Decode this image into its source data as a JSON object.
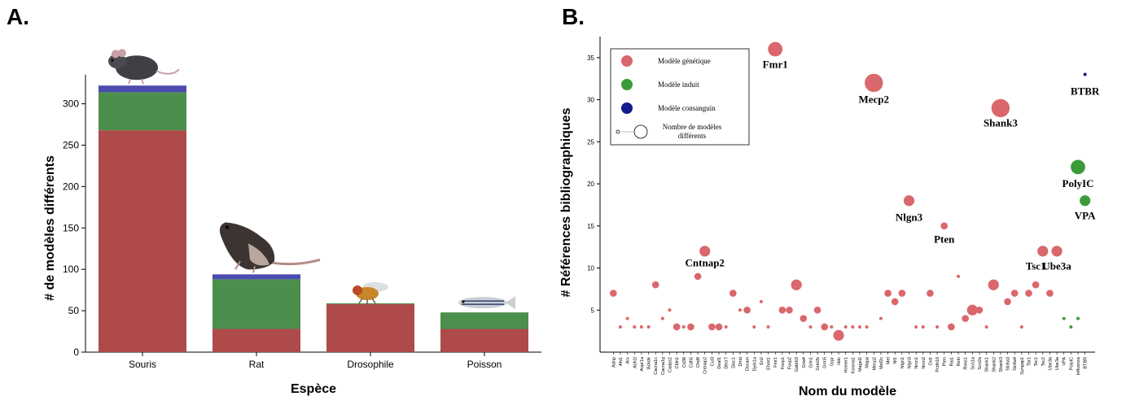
{
  "panel_a": {
    "letter": "A."
  },
  "panel_b": {
    "letter": "B."
  },
  "chart_data": [
    {
      "type": "bar",
      "stacked": true,
      "xlabel": "Espèce",
      "ylabel": "# de modèles différents",
      "ylim": [
        0,
        335
      ],
      "yticks": [
        0,
        50,
        100,
        150,
        200,
        250,
        300
      ],
      "categories": [
        "Souris",
        "Rat",
        "Drosophile",
        "Poisson"
      ],
      "colors": [
        "#ae4a4a",
        "#4c8f4c",
        "#4b4bb0"
      ],
      "series": [
        {
          "values": [
            268,
            28,
            58,
            28
          ]
        },
        {
          "values": [
            46,
            60,
            1,
            20
          ]
        },
        {
          "values": [
            8,
            6,
            0,
            0
          ]
        }
      ],
      "icons": [
        "mouse-illustration",
        "rat-illustration",
        "fly-illustration",
        "fish-illustration"
      ]
    },
    {
      "type": "scatter",
      "xlabel": "Nom du modèle",
      "ylabel": "# Références bibliographiques",
      "ylim": [
        0,
        37.5
      ],
      "yticks": [
        5,
        10,
        15,
        20,
        25,
        30,
        35
      ],
      "grid": false,
      "legend_position": "top-left",
      "categories": [
        "Adnp",
        "Ahi1",
        "Arx",
        "Ash1l",
        "Avpr1a",
        "Bckdk",
        "Cacna1c",
        "Cacna1g",
        "Cadps2",
        "Cbln1",
        "Cd38",
        "Cdh5",
        "Chd8",
        "Cntnap2",
        "Cul3",
        "Deaf1",
        "Dhcr7",
        "Disc1",
        "Dmd",
        "Dscam",
        "Dyrk1a",
        "En2",
        "Ehmt1",
        "Fmr1",
        "Foxp1",
        "Foxp2",
        "Gabrb3",
        "Gria4",
        "Grin1",
        "Grin2b",
        "Grm5",
        "Grpr",
        "Hdc",
        "Homer1",
        "Kcnma1",
        "Magel2",
        "Mapa",
        "Mecp2",
        "Mef2c",
        "Met",
        "Nf1",
        "Nlgn1",
        "Nlgn3",
        "Nrxn1",
        "Nrxn2",
        "Oxtr",
        "Pcdh10",
        "Pten",
        "Rai1",
        "Reln",
        "Rims1",
        "Scn1a",
        "Scn2a",
        "Shank1",
        "Shank2",
        "Shank3",
        "Slc6a3",
        "Slc6a4",
        "Syngap1",
        "Tbr1",
        "Tsc1",
        "Tsc2",
        "Ube3a",
        "Ube3a",
        "VPA",
        "PolyIC",
        "Influenza",
        "BTBR"
      ],
      "points": [
        {
          "x": "Adnp",
          "y": 7,
          "n": 2,
          "type": "g"
        },
        {
          "x": "Ahi1",
          "y": 3,
          "n": 1,
          "type": "g"
        },
        {
          "x": "Arx",
          "y": 4,
          "n": 1,
          "type": "g"
        },
        {
          "x": "Ash1l",
          "y": 3,
          "n": 1,
          "type": "g"
        },
        {
          "x": "Avpr1a",
          "y": 3,
          "n": 1,
          "type": "g"
        },
        {
          "x": "Bckdk",
          "y": 3,
          "n": 1,
          "type": "g"
        },
        {
          "x": "Cacna1c",
          "y": 8,
          "n": 2,
          "type": "g"
        },
        {
          "x": "Cacna1g",
          "y": 4,
          "n": 1,
          "type": "g"
        },
        {
          "x": "Cadps2",
          "y": 5,
          "n": 1,
          "type": "g"
        },
        {
          "x": "Cbln1",
          "y": 3,
          "n": 2,
          "type": "g"
        },
        {
          "x": "Cd38",
          "y": 3,
          "n": 1,
          "type": "g"
        },
        {
          "x": "Cdh5",
          "y": 3,
          "n": 2,
          "type": "g"
        },
        {
          "x": "Chd8",
          "y": 9,
          "n": 2,
          "type": "g"
        },
        {
          "x": "Cntnap2",
          "y": 12,
          "n": 3,
          "type": "g"
        },
        {
          "x": "Cul3",
          "y": 3,
          "n": 2,
          "type": "g"
        },
        {
          "x": "Deaf1",
          "y": 3,
          "n": 2,
          "type": "g"
        },
        {
          "x": "Dhcr7",
          "y": 3,
          "n": 1,
          "type": "g"
        },
        {
          "x": "Disc1",
          "y": 7,
          "n": 2,
          "type": "g"
        },
        {
          "x": "Dmd",
          "y": 5,
          "n": 1,
          "type": "g"
        },
        {
          "x": "Dscam",
          "y": 5,
          "n": 2,
          "type": "g"
        },
        {
          "x": "Dyrk1a",
          "y": 3,
          "n": 1,
          "type": "g"
        },
        {
          "x": "En2",
          "y": 6,
          "n": 1,
          "type": "g"
        },
        {
          "x": "Ehmt1",
          "y": 3,
          "n": 1,
          "type": "g"
        },
        {
          "x": "Fmr1",
          "y": 36,
          "n": 4,
          "type": "g"
        },
        {
          "x": "Foxp1",
          "y": 5,
          "n": 2,
          "type": "g"
        },
        {
          "x": "Foxp2",
          "y": 5,
          "n": 2,
          "type": "g"
        },
        {
          "x": "Gabrb3",
          "y": 8,
          "n": 3,
          "type": "g"
        },
        {
          "x": "Gria4",
          "y": 4,
          "n": 2,
          "type": "g"
        },
        {
          "x": "Grin1",
          "y": 3,
          "n": 1,
          "type": "g"
        },
        {
          "x": "Grin2b",
          "y": 5,
          "n": 2,
          "type": "g"
        },
        {
          "x": "Grm5",
          "y": 3,
          "n": 2,
          "type": "g"
        },
        {
          "x": "Grpr",
          "y": 3,
          "n": 1,
          "type": "g"
        },
        {
          "x": "Hdc",
          "y": 2,
          "n": 3,
          "type": "g"
        },
        {
          "x": "Homer1",
          "y": 3,
          "n": 1,
          "type": "g"
        },
        {
          "x": "Kcnma1",
          "y": 3,
          "n": 1,
          "type": "g"
        },
        {
          "x": "Magel2",
          "y": 3,
          "n": 1,
          "type": "g"
        },
        {
          "x": "Mapa",
          "y": 3,
          "n": 1,
          "type": "g"
        },
        {
          "x": "Mecp2",
          "y": 32,
          "n": 5,
          "type": "g"
        },
        {
          "x": "Mef2c",
          "y": 4,
          "n": 1,
          "type": "g"
        },
        {
          "x": "Met",
          "y": 7,
          "n": 2,
          "type": "g"
        },
        {
          "x": "Nf1",
          "y": 6,
          "n": 2,
          "type": "g"
        },
        {
          "x": "Nlgn1",
          "y": 7,
          "n": 2,
          "type": "g"
        },
        {
          "x": "Nlgn3",
          "y": 18,
          "n": 3,
          "type": "g"
        },
        {
          "x": "Nrxn1",
          "y": 3,
          "n": 1,
          "type": "g"
        },
        {
          "x": "Nrxn2",
          "y": 3,
          "n": 1,
          "type": "g"
        },
        {
          "x": "Oxtr",
          "y": 7,
          "n": 2,
          "type": "g"
        },
        {
          "x": "Pcdh10",
          "y": 3,
          "n": 1,
          "type": "g"
        },
        {
          "x": "Pten",
          "y": 15,
          "n": 2,
          "type": "g"
        },
        {
          "x": "Rai1",
          "y": 3,
          "n": 2,
          "type": "g"
        },
        {
          "x": "Reln",
          "y": 9,
          "n": 1,
          "type": "g"
        },
        {
          "x": "Rims1",
          "y": 4,
          "n": 2,
          "type": "g"
        },
        {
          "x": "Scn1a",
          "y": 5,
          "n": 3,
          "type": "g"
        },
        {
          "x": "Scn2a",
          "y": 5,
          "n": 2,
          "type": "g"
        },
        {
          "x": "Shank1",
          "y": 3,
          "n": 1,
          "type": "g"
        },
        {
          "x": "Shank2",
          "y": 8,
          "n": 3,
          "type": "g"
        },
        {
          "x": "Shank3",
          "y": 29,
          "n": 5,
          "type": "g"
        },
        {
          "x": "Slc6a3",
          "y": 6,
          "n": 2,
          "type": "g"
        },
        {
          "x": "Slc6a4",
          "y": 7,
          "n": 2,
          "type": "g"
        },
        {
          "x": "Syngap1",
          "y": 3,
          "n": 1,
          "type": "g"
        },
        {
          "x": "Tbr1",
          "y": 7,
          "n": 2,
          "type": "g"
        },
        {
          "x": "Tsc1",
          "y": 8,
          "n": 2,
          "type": "g"
        },
        {
          "x": "Tsc2",
          "y": 12,
          "n": 3,
          "type": "g"
        },
        {
          "x": "Ube3a",
          "y": 7,
          "n": 2,
          "type": "g"
        },
        {
          "x": "Ube3a",
          "y": 12,
          "n": 3,
          "type": "g"
        },
        {
          "x": "VPA",
          "y": 4,
          "n": 1,
          "type": "i"
        },
        {
          "x": "PolyIC",
          "y": 3,
          "n": 1,
          "type": "i"
        },
        {
          "x": "Influenza",
          "y": 22,
          "n": 4,
          "type": "i"
        },
        {
          "x": "Influenza",
          "y": 4,
          "n": 1,
          "type": "i"
        },
        {
          "x": "BTBR",
          "y": 18,
          "n": 3,
          "type": "i"
        },
        {
          "x": "BTBR",
          "y": 33,
          "n": 1,
          "type": "c"
        }
      ],
      "annotations": [
        {
          "text": "Cntnap2",
          "x": "Cntnap2",
          "y": 10.2
        },
        {
          "text": "Fmr1",
          "x": "Fmr1",
          "y": 33.8
        },
        {
          "text": "Mecp2",
          "x": "Mecp2",
          "y": 29.6
        },
        {
          "text": "Nlgn3",
          "x": "Nlgn3",
          "y": 15.6
        },
        {
          "text": "Pten",
          "x": "Pten",
          "y": 13.0
        },
        {
          "text": "Shank3",
          "x": "Shank3",
          "y": 26.8
        },
        {
          "text": "Tsc1",
          "x": "Tsc1",
          "y": 9.8
        },
        {
          "text": "Ube3a",
          "x": "Ube3a",
          "y": 9.8
        },
        {
          "text": "PolyIC",
          "x": "Influenza",
          "y": 19.6
        },
        {
          "text": "VPA",
          "x": "BTBR",
          "y": 15.8
        },
        {
          "text": "BTBR",
          "x": "BTBR",
          "y": 30.6
        }
      ],
      "colors": {
        "g": "#d9676b",
        "i": "#3b9b3b",
        "c": "#121a8c"
      },
      "legend": [
        {
          "label": "Modèle génétique",
          "type": "g"
        },
        {
          "label": "Modèle induit",
          "type": "i"
        },
        {
          "label": "Modèle consanguin",
          "type": "c"
        },
        {
          "label": "Nombre de modèles différents",
          "type": "size"
        }
      ]
    }
  ]
}
